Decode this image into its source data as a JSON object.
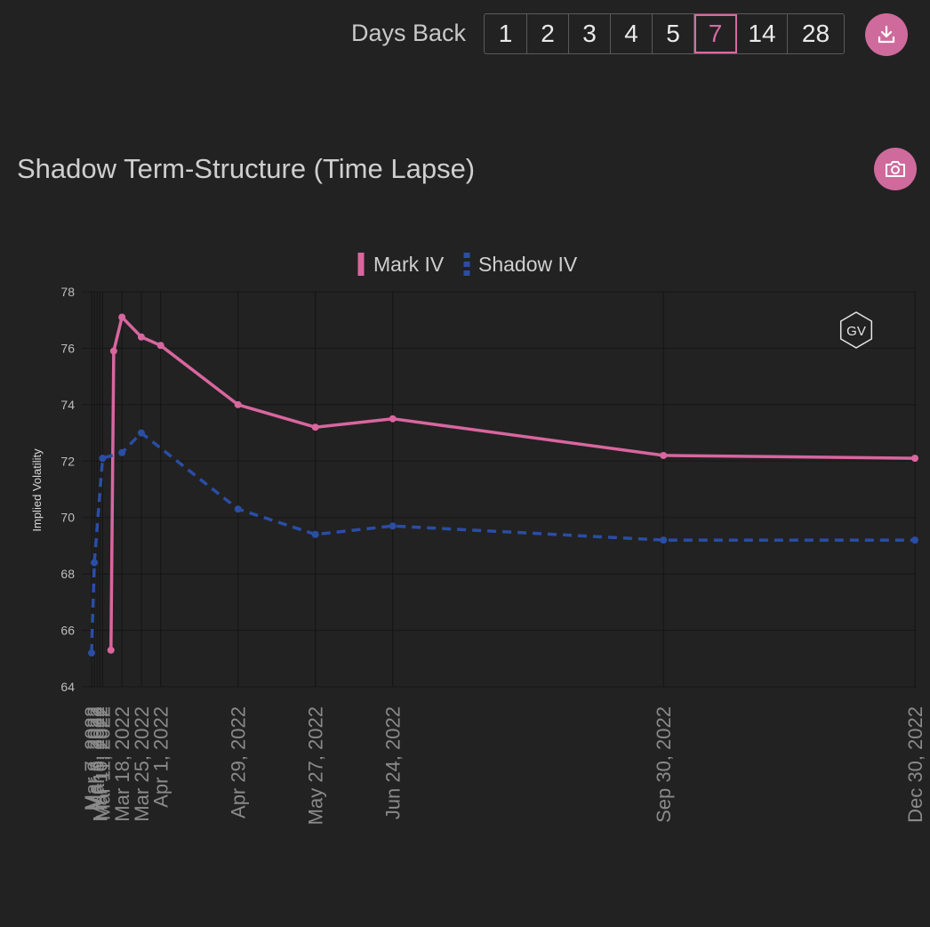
{
  "toolbar": {
    "days_back_label": "Days Back",
    "day_options": [
      "1",
      "2",
      "3",
      "4",
      "5",
      "7",
      "14",
      "28"
    ],
    "selected": "7",
    "download_icon": "download-icon"
  },
  "chart_header": {
    "title": "Shadow Term-Structure (Time Lapse)",
    "camera_icon": "camera-icon"
  },
  "watermark": "GV",
  "colors": {
    "accent": "#cf6a9c",
    "mark": "#d9669f",
    "shadow": "#2a4da6",
    "background": "#222222"
  },
  "chart_data": {
    "type": "line",
    "ylabel": "Implied Volatility",
    "xlabel": "",
    "ylim": [
      64,
      78
    ],
    "yticks": [
      64,
      66,
      68,
      70,
      72,
      74,
      76,
      78
    ],
    "legend_position": "top-center",
    "grid": true,
    "x": [
      "Mar 7, 2022",
      "Mar 8, 2022",
      "Mar 9, 2022",
      "Mar 10, 2022",
      "Mar 11, 2022",
      "Mar 18, 2022",
      "Mar 25, 2022",
      "Apr 1, 2022",
      "Apr 29, 2022",
      "May 27, 2022",
      "Jun 24, 2022",
      "Sep 30, 2022",
      "Dec 30, 2022"
    ],
    "x_tick_labels": [
      "Mar 7, 2022",
      "Mar 8, 2022",
      "Mar 9, 2022",
      "Mar 10, 2022",
      "Mar 11, 2022",
      "Mar 18, 2022",
      "Mar 25, 2022",
      "Apr 1, 2022",
      "Apr 29, 2022",
      "May 27, 2022",
      "Jun 24, 2022",
      "Sep 30, 2022",
      "Dec 30, 2022"
    ],
    "series": [
      {
        "name": "Mark IV",
        "dash": "solid",
        "color": "#d9669f",
        "points": [
          [
            "Mar 14, 2022",
            65.3
          ],
          [
            "Mar 15, 2022",
            75.9
          ],
          [
            "Mar 18, 2022",
            77.1
          ],
          [
            "Mar 25, 2022",
            76.4
          ],
          [
            "Apr 1, 2022",
            76.1
          ],
          [
            "Apr 29, 2022",
            74.0
          ],
          [
            "May 27, 2022",
            73.2
          ],
          [
            "Jun 24, 2022",
            73.5
          ],
          [
            "Sep 30, 2022",
            72.2
          ],
          [
            "Dec 30, 2022",
            72.1
          ]
        ]
      },
      {
        "name": "Shadow IV",
        "dash": "dashed",
        "color": "#2a4da6",
        "points": [
          [
            "Mar 7, 2022",
            65.2
          ],
          [
            "Mar 8, 2022",
            68.4
          ],
          [
            "Mar 11, 2022",
            72.1
          ],
          [
            "Mar 18, 2022",
            72.3
          ],
          [
            "Mar 25, 2022",
            73.0
          ],
          [
            "Apr 29, 2022",
            70.3
          ],
          [
            "May 27, 2022",
            69.4
          ],
          [
            "Jun 24, 2022",
            69.7
          ],
          [
            "Sep 30, 2022",
            69.2
          ],
          [
            "Dec 30, 2022",
            69.2
          ]
        ]
      }
    ]
  }
}
